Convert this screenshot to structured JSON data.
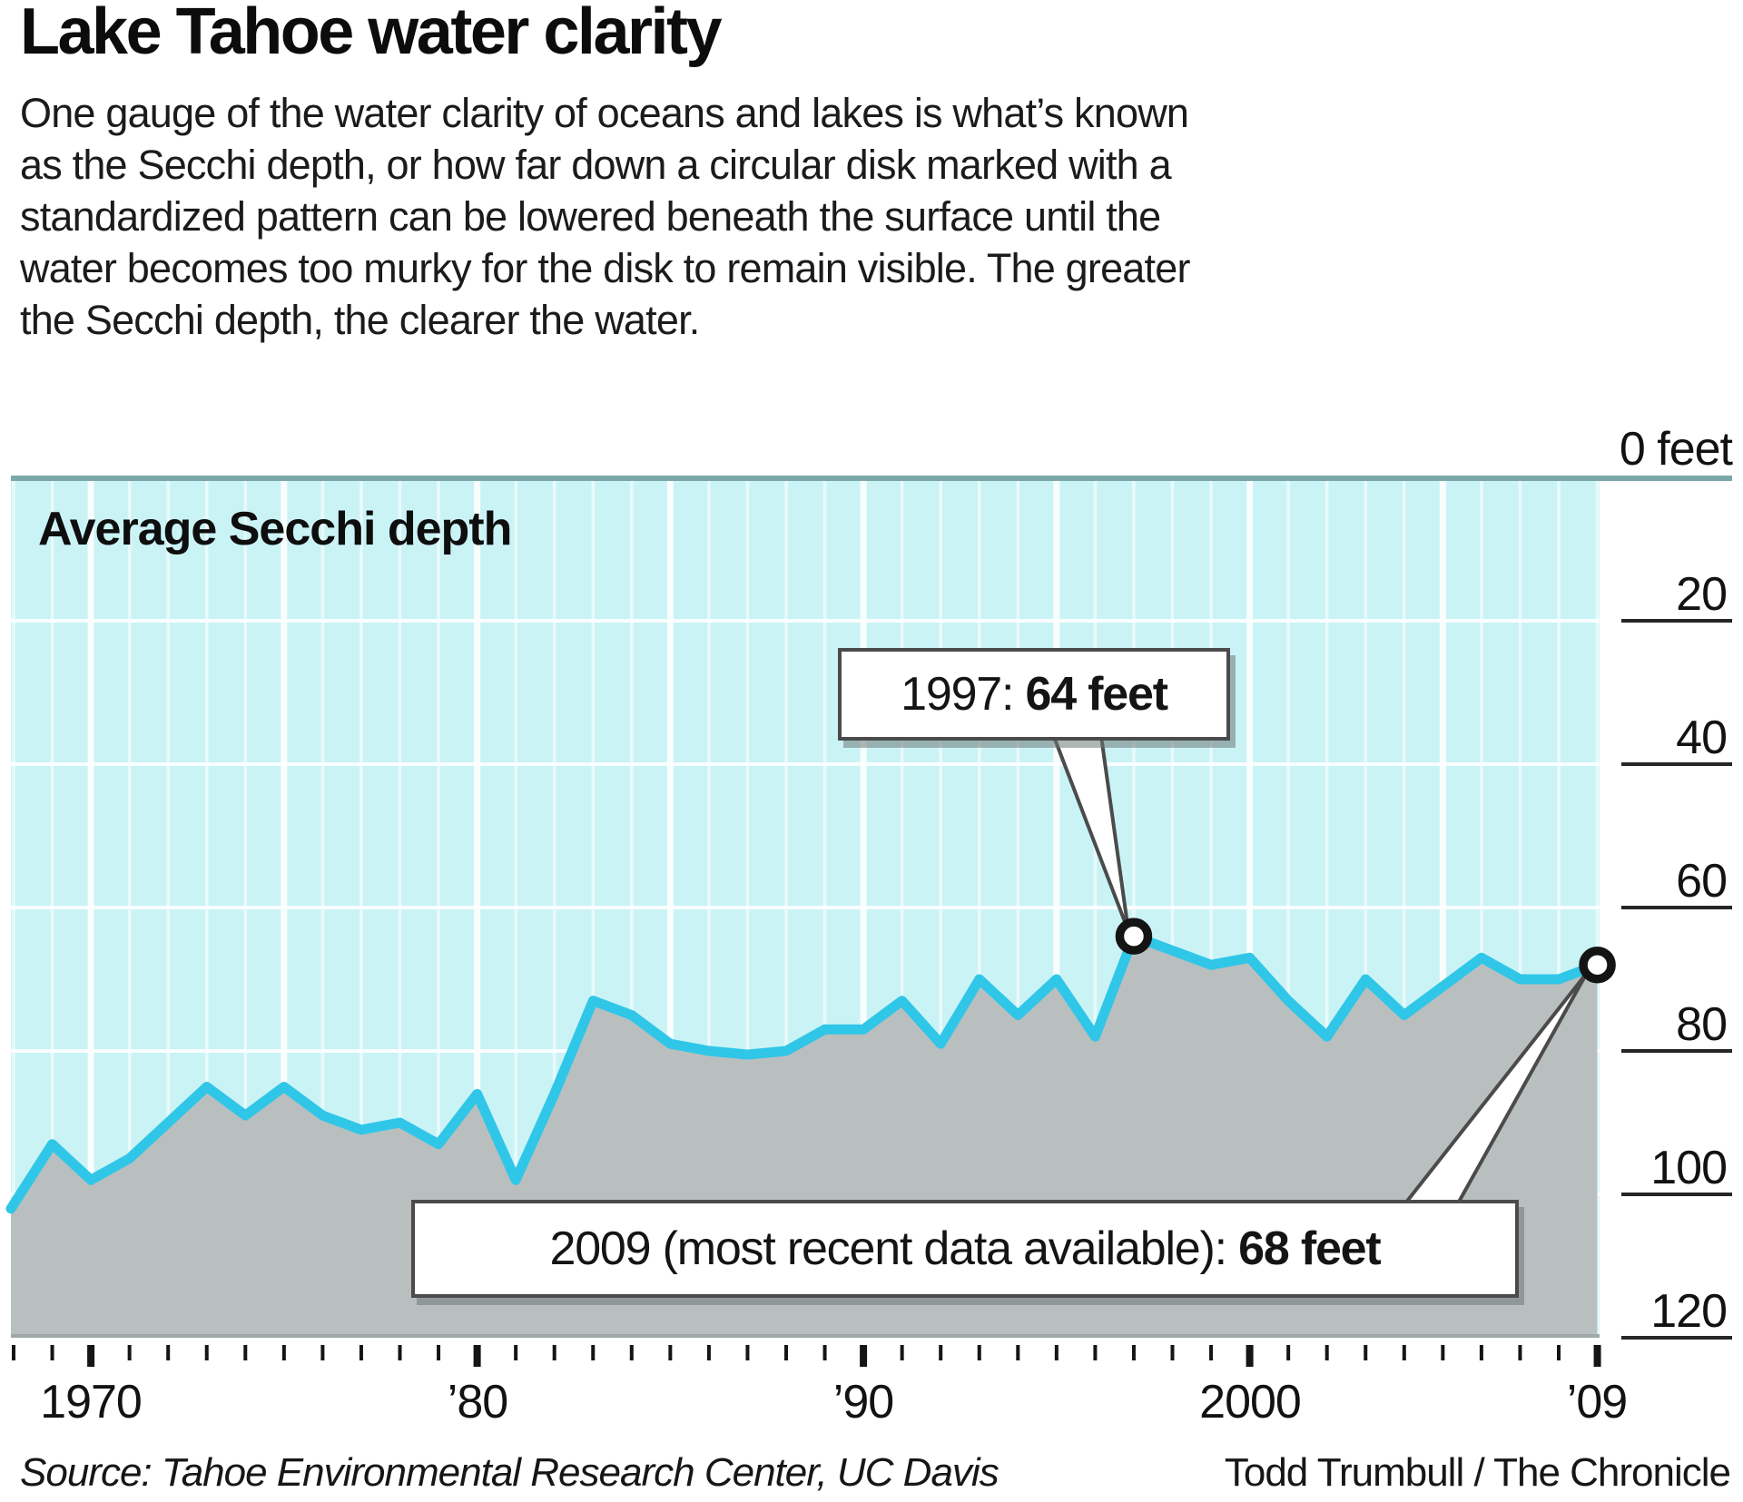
{
  "title": "Lake Tahoe water clarity",
  "intro_lines": [
    "One gauge of the water clarity of oceans and lakes is what’s known",
    "as the Secchi depth, or how far down a circular disk marked with a",
    "standardized pattern can be lowered beneath the surface until the",
    "water becomes too murky for the disk to remain visible. The greater",
    "the Secchi depth, the clearer the water."
  ],
  "chart_label": "Average Secchi depth",
  "y_axis": {
    "top_label": "0 feet",
    "tick_labels": [
      "20",
      "40",
      "60",
      "80",
      "100",
      "120"
    ],
    "unit": "feet"
  },
  "x_axis": {
    "tick_labels": [
      "1970",
      "’80",
      "’90",
      "2000",
      "’09"
    ],
    "tick_years": [
      1970,
      1980,
      1990,
      2000,
      2009
    ]
  },
  "callouts": [
    {
      "label": "1997: ",
      "value": "64 feet",
      "year": 1997,
      "depth_feet": 64
    },
    {
      "label": "2009 (most recent data available): ",
      "value": "68 feet",
      "year": 2009,
      "depth_feet": 68
    }
  ],
  "source": "Source: Tahoe Environmental Research Center, UC Davis",
  "credit": "Todd Trumbull / The Chronicle",
  "colors": {
    "plot_background": "#caf3f6",
    "gridline": "#ffffff",
    "data_line": "#30c6e8",
    "area_fill": "#b9bfbf",
    "zero_line": "#7aa7aa",
    "plot_bottom_edge": "#9fa8a8",
    "tick": "#151515",
    "callout_border": "#4b4b4b",
    "marker_ring": "#141414"
  },
  "chart_data": {
    "type": "area",
    "title": "Average Secchi depth",
    "unit": "feet",
    "y_inverted": true,
    "ylim": [
      0,
      120
    ],
    "y_gridline_interval": 20,
    "x_gridline_interval_years": 1,
    "x": [
      1968,
      1969,
      1970,
      1971,
      1972,
      1973,
      1974,
      1975,
      1976,
      1977,
      1978,
      1979,
      1980,
      1981,
      1982,
      1983,
      1984,
      1985,
      1986,
      1987,
      1988,
      1989,
      1990,
      1991,
      1992,
      1993,
      1994,
      1995,
      1996,
      1997,
      1998,
      1999,
      2000,
      2001,
      2002,
      2003,
      2004,
      2005,
      2006,
      2007,
      2008,
      2009
    ],
    "values": [
      102,
      93,
      98,
      95,
      90,
      85,
      89,
      85,
      89,
      91,
      90,
      93,
      86,
      98,
      86,
      73,
      75,
      79,
      80,
      80.5,
      80,
      77,
      77,
      73,
      79,
      70,
      75,
      70,
      78,
      64,
      66,
      68,
      67,
      73,
      78,
      70,
      75,
      71,
      67,
      70,
      70,
      68
    ],
    "annotated_points": [
      {
        "x": 1997,
        "value": 64,
        "label": "1997: 64 feet"
      },
      {
        "x": 2009,
        "value": 68,
        "label": "2009 (most recent data available): 68 feet"
      }
    ]
  }
}
